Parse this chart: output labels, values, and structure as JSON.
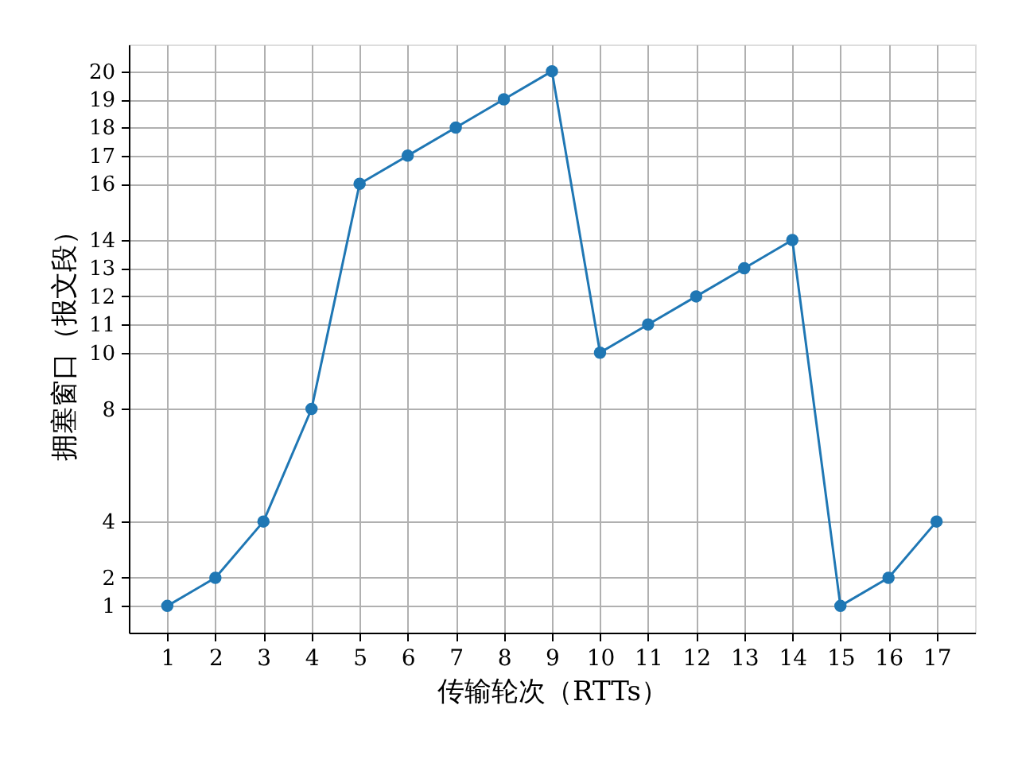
{
  "chart_data": {
    "type": "line",
    "xlabel": "传输轮次（RTTs）",
    "ylabel": "拥塞窗口（报文段）",
    "x": [
      1,
      2,
      3,
      4,
      5,
      6,
      7,
      8,
      9,
      10,
      11,
      12,
      13,
      14,
      15,
      16,
      17
    ],
    "series": [
      {
        "color": "#1f77b4",
        "values": [
          1,
          2,
          4,
          8,
          16,
          17,
          18,
          19,
          20,
          10,
          11,
          12,
          13,
          14,
          1,
          2,
          4
        ]
      }
    ],
    "xlim": [
      0.2,
      17.8
    ],
    "xticks": [
      1,
      2,
      3,
      4,
      5,
      6,
      7,
      8,
      9,
      10,
      11,
      12,
      13,
      14,
      15,
      16,
      17
    ],
    "ylim": [
      0.05,
      20.95
    ],
    "yticks": [
      1,
      2,
      4,
      8,
      10,
      11,
      12,
      13,
      14,
      16,
      17,
      18,
      19,
      20
    ],
    "grid": true,
    "marker": "circle",
    "line_style": "solid"
  }
}
